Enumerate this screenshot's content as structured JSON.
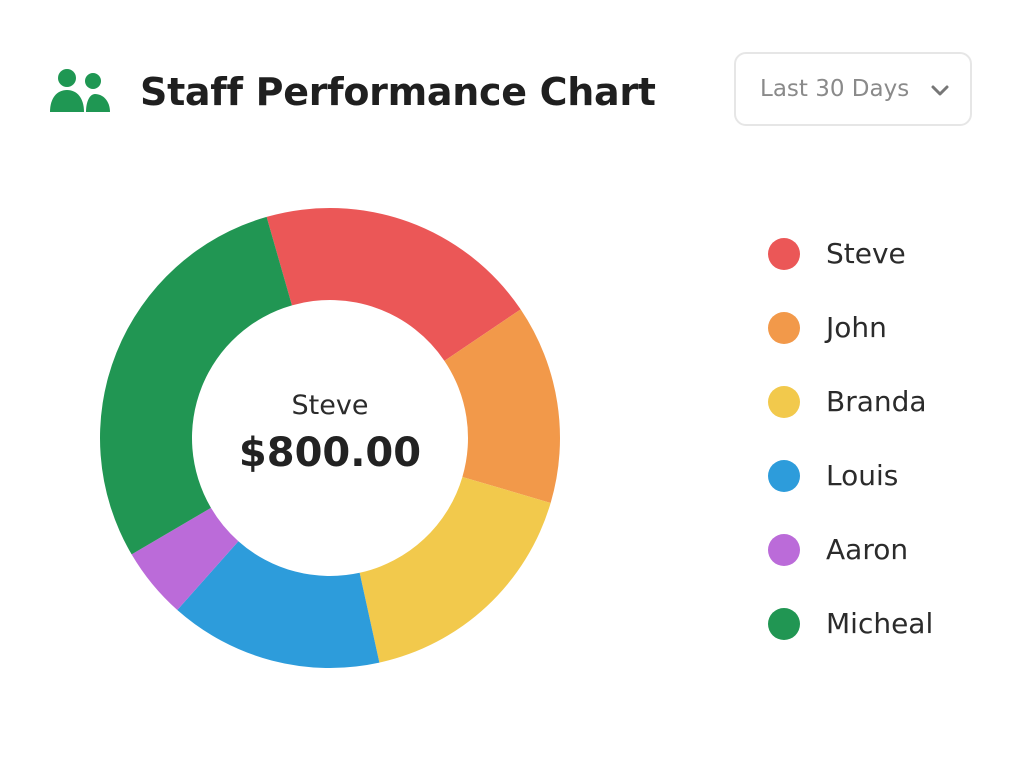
{
  "header": {
    "title": "Staff Performance Chart",
    "icon": "users-icon",
    "icon_color": "#1f9753"
  },
  "range_select": {
    "selected": "Last 30 Days",
    "icon": "chevron-down-icon"
  },
  "center": {
    "name": "Steve",
    "value": "$800.00"
  },
  "chart_data": {
    "type": "pie",
    "donut": true,
    "categories": [
      "Steve",
      "John",
      "Branda",
      "Louis",
      "Aaron",
      "Micheal"
    ],
    "values": [
      20,
      14,
      17,
      15,
      5,
      29
    ],
    "colors": [
      "#eb5757",
      "#f2994a",
      "#f2c94c",
      "#2d9cdb",
      "#bb6bd9",
      "#219653"
    ],
    "start_angle_deg": -16,
    "legend_position": "right"
  }
}
